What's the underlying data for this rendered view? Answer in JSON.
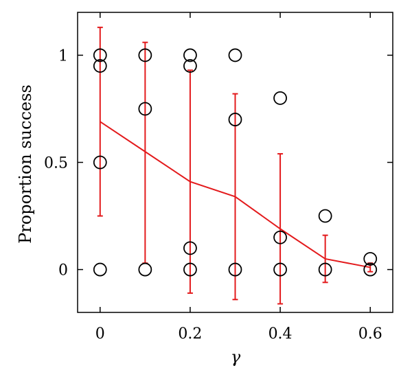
{
  "chart_data": {
    "type": "scatter",
    "title": "",
    "xlabel": "γ",
    "ylabel": "Proportion success",
    "xlim": [
      -0.05,
      0.65
    ],
    "ylim": [
      -0.2,
      1.2
    ],
    "xticks": [
      0,
      0.2,
      0.4,
      0.6
    ],
    "xtick_labels": [
      "0",
      "0.2",
      "0.4",
      "0.6"
    ],
    "yticks": [
      0,
      0.5,
      1
    ],
    "ytick_labels": [
      "0",
      "0.5",
      "1"
    ],
    "grid": false,
    "legend": "none",
    "points": [
      {
        "x": 0,
        "y": 1
      },
      {
        "x": 0,
        "y": 0.95
      },
      {
        "x": 0,
        "y": 0.5
      },
      {
        "x": 0,
        "y": 0
      },
      {
        "x": 0.1,
        "y": 1
      },
      {
        "x": 0.1,
        "y": 0.75
      },
      {
        "x": 0.1,
        "y": 0
      },
      {
        "x": 0.2,
        "y": 1
      },
      {
        "x": 0.2,
        "y": 0.95
      },
      {
        "x": 0.2,
        "y": 0.1
      },
      {
        "x": 0.2,
        "y": 0
      },
      {
        "x": 0.3,
        "y": 1
      },
      {
        "x": 0.3,
        "y": 0.7
      },
      {
        "x": 0.3,
        "y": 0
      },
      {
        "x": 0.4,
        "y": 0.8
      },
      {
        "x": 0.4,
        "y": 0.15
      },
      {
        "x": 0.4,
        "y": 0
      },
      {
        "x": 0.5,
        "y": 0.25
      },
      {
        "x": 0.5,
        "y": 0
      },
      {
        "x": 0.6,
        "y": 0.05
      },
      {
        "x": 0.6,
        "y": 0
      }
    ],
    "mean_line": {
      "x": [
        0,
        0.1,
        0.2,
        0.3,
        0.4,
        0.5,
        0.6
      ],
      "y": [
        0.69,
        0.55,
        0.41,
        0.34,
        0.19,
        0.05,
        0.01
      ],
      "err_low": [
        0.25,
        0.03,
        -0.11,
        -0.14,
        -0.16,
        -0.06,
        -0.01
      ],
      "err_high": [
        1.13,
        1.06,
        0.93,
        0.82,
        0.54,
        0.16,
        0.03
      ]
    },
    "colors": {
      "points": "#000000",
      "mean_line": "#e31a1c",
      "axes": "#000000"
    }
  }
}
